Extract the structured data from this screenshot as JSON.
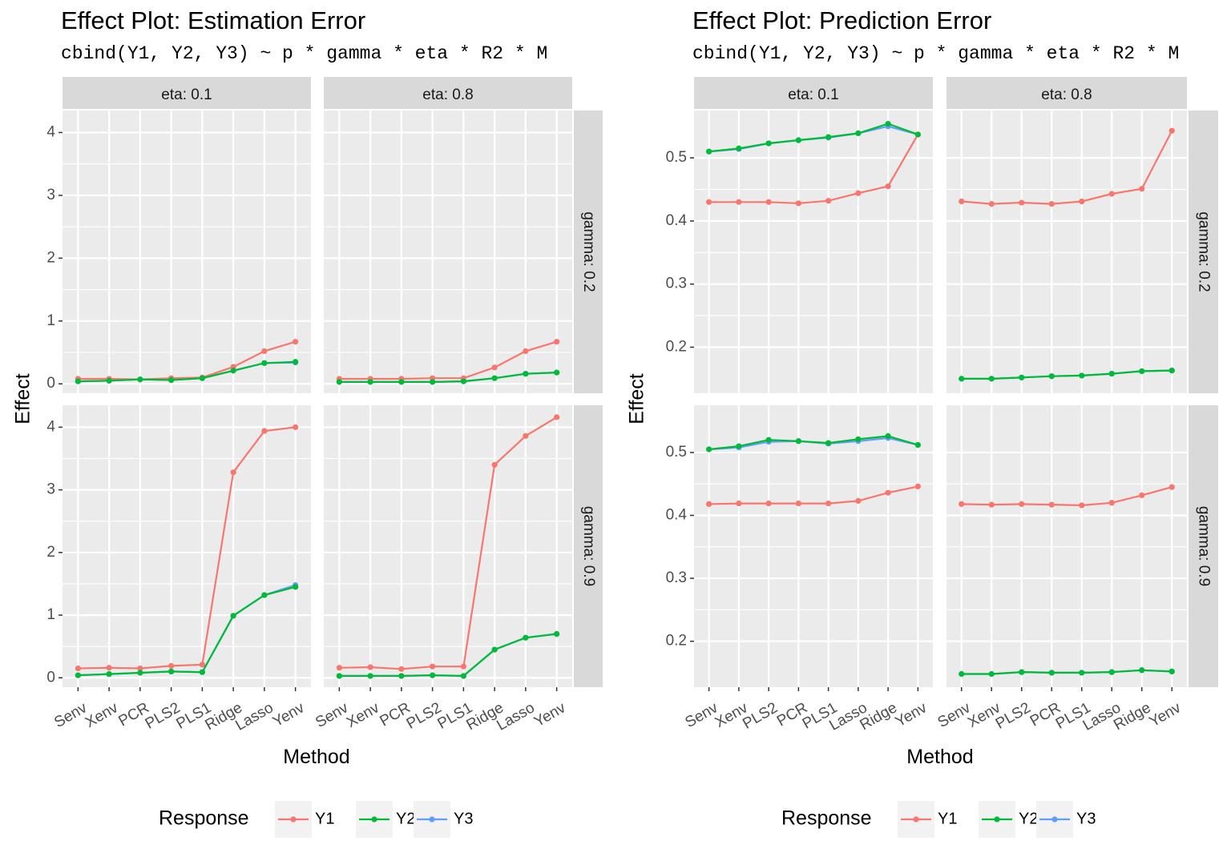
{
  "legend_title": "Response",
  "series_names": [
    "Y1",
    "Y2",
    "Y3"
  ],
  "colors": {
    "Y1": "#F8766D",
    "Y2": "#00BA38",
    "Y3": "#619CFF",
    "panel_bg": "#EBEBEB",
    "strip_bg": "#D9D9D9",
    "grid": "#FFFFFF"
  },
  "chart_data": [
    {
      "type": "line",
      "title": "Effect Plot: Estimation Error",
      "subtitle": "cbind(Y1, Y2, Y3) ~ p * gamma * eta * R2 * M",
      "xlabel": "Method",
      "ylabel": "Effect",
      "categories": [
        "Senv",
        "Xenv",
        "PCR",
        "PLS2",
        "PLS1",
        "Ridge",
        "Lasso",
        "Yenv"
      ],
      "col_facets": [
        "eta: 0.1",
        "eta: 0.8"
      ],
      "row_facets": [
        "gamma: 0.2",
        "gamma: 0.9"
      ],
      "ylim": [
        -0.15,
        4.35
      ],
      "yticks": [
        0,
        1,
        2,
        3,
        4
      ],
      "yticklabels": [
        "0",
        "1",
        "2",
        "3",
        "4"
      ],
      "grid": true,
      "legend": "bottom",
      "panels": [
        {
          "row": 0,
          "col": 0,
          "series": [
            {
              "name": "Y1",
              "values": [
                0.08,
                0.08,
                0.07,
                0.09,
                0.1,
                0.27,
                0.52,
                0.67
              ]
            },
            {
              "name": "Y2",
              "values": [
                0.04,
                0.05,
                0.07,
                0.06,
                0.09,
                0.21,
                0.33,
                0.35
              ]
            },
            {
              "name": "Y3",
              "values": [
                0.04,
                0.05,
                0.07,
                0.06,
                0.09,
                0.21,
                0.33,
                0.34
              ]
            }
          ]
        },
        {
          "row": 0,
          "col": 1,
          "series": [
            {
              "name": "Y1",
              "values": [
                0.08,
                0.08,
                0.08,
                0.09,
                0.09,
                0.26,
                0.52,
                0.67
              ]
            },
            {
              "name": "Y2",
              "values": [
                0.03,
                0.03,
                0.03,
                0.03,
                0.04,
                0.09,
                0.16,
                0.18
              ]
            },
            {
              "name": "Y3",
              "values": [
                0.03,
                0.03,
                0.03,
                0.03,
                0.04,
                0.09,
                0.16,
                0.18
              ]
            }
          ]
        },
        {
          "row": 1,
          "col": 0,
          "series": [
            {
              "name": "Y1",
              "values": [
                0.15,
                0.16,
                0.15,
                0.19,
                0.21,
                3.28,
                3.94,
                4.0
              ]
            },
            {
              "name": "Y2",
              "values": [
                0.04,
                0.06,
                0.08,
                0.1,
                0.09,
                0.99,
                1.32,
                1.45
              ]
            },
            {
              "name": "Y3",
              "values": [
                0.04,
                0.06,
                0.08,
                0.1,
                0.09,
                0.99,
                1.32,
                1.48
              ]
            }
          ]
        },
        {
          "row": 1,
          "col": 1,
          "series": [
            {
              "name": "Y1",
              "values": [
                0.16,
                0.17,
                0.14,
                0.18,
                0.18,
                3.4,
                3.86,
                4.16
              ]
            },
            {
              "name": "Y2",
              "values": [
                0.03,
                0.03,
                0.03,
                0.04,
                0.03,
                0.45,
                0.64,
                0.7
              ]
            },
            {
              "name": "Y3",
              "values": [
                0.03,
                0.03,
                0.03,
                0.04,
                0.03,
                0.45,
                0.64,
                0.7
              ]
            }
          ]
        }
      ]
    },
    {
      "type": "line",
      "title": "Effect Plot: Prediction Error",
      "subtitle": "cbind(Y1, Y2, Y3) ~ p * gamma * eta * R2 * M",
      "xlabel": "Method",
      "ylabel": "Effect",
      "categories": [
        "Senv",
        "Xenv",
        "PLS2",
        "PCR",
        "PLS1",
        "Lasso",
        "Ridge",
        "Yenv"
      ],
      "col_facets": [
        "eta: 0.1",
        "eta: 0.8"
      ],
      "row_facets": [
        "gamma: 0.2",
        "gamma: 0.9"
      ],
      "ylim": [
        0.127,
        0.575
      ],
      "yticks": [
        0.2,
        0.3,
        0.4,
        0.5
      ],
      "yticklabels": [
        "0.2",
        "0.3",
        "0.4",
        "0.5"
      ],
      "grid": true,
      "legend": "bottom",
      "panels": [
        {
          "row": 0,
          "col": 0,
          "series": [
            {
              "name": "Y1",
              "values": [
                0.43,
                0.43,
                0.43,
                0.428,
                0.432,
                0.444,
                0.455,
                0.537
              ]
            },
            {
              "name": "Y2",
              "values": [
                0.51,
                0.515,
                0.523,
                0.528,
                0.533,
                0.539,
                0.554,
                0.537
              ]
            },
            {
              "name": "Y3",
              "values": [
                0.51,
                0.514,
                0.523,
                0.528,
                0.532,
                0.539,
                0.55,
                0.537
              ]
            }
          ]
        },
        {
          "row": 0,
          "col": 1,
          "series": [
            {
              "name": "Y1",
              "values": [
                0.431,
                0.427,
                0.429,
                0.427,
                0.431,
                0.443,
                0.451,
                0.543
              ]
            },
            {
              "name": "Y2",
              "values": [
                0.15,
                0.15,
                0.152,
                0.154,
                0.155,
                0.158,
                0.162,
                0.163
              ]
            },
            {
              "name": "Y3",
              "values": [
                0.15,
                0.15,
                0.152,
                0.154,
                0.155,
                0.158,
                0.162,
                0.163
              ]
            }
          ]
        },
        {
          "row": 1,
          "col": 0,
          "series": [
            {
              "name": "Y1",
              "values": [
                0.418,
                0.419,
                0.419,
                0.419,
                0.419,
                0.423,
                0.436,
                0.446
              ]
            },
            {
              "name": "Y2",
              "values": [
                0.505,
                0.51,
                0.52,
                0.518,
                0.515,
                0.521,
                0.526,
                0.512
              ]
            },
            {
              "name": "Y3",
              "values": [
                0.505,
                0.508,
                0.517,
                0.518,
                0.514,
                0.518,
                0.523,
                0.512
              ]
            }
          ]
        },
        {
          "row": 1,
          "col": 1,
          "series": [
            {
              "name": "Y1",
              "values": [
                0.418,
                0.417,
                0.418,
                0.417,
                0.416,
                0.42,
                0.432,
                0.445
              ]
            },
            {
              "name": "Y2",
              "values": [
                0.148,
                0.148,
                0.151,
                0.15,
                0.15,
                0.151,
                0.154,
                0.152
              ]
            },
            {
              "name": "Y3",
              "values": [
                0.148,
                0.148,
                0.151,
                0.15,
                0.15,
                0.151,
                0.154,
                0.152
              ]
            }
          ]
        }
      ]
    }
  ]
}
